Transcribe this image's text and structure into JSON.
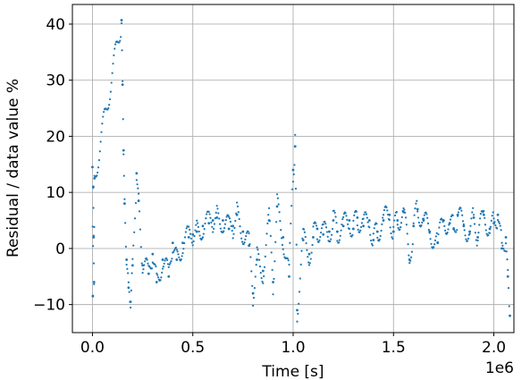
{
  "chart_data": {
    "type": "scatter",
    "title": "",
    "xlabel": "Time [s]",
    "ylabel": "Residual / data value  %",
    "x_offset_label": "1e6",
    "xlim": [
      -0.1,
      2.1
    ],
    "ylim": [
      -15,
      43.5
    ],
    "x_ticks": [
      0.0,
      0.5,
      1.0,
      1.5,
      2.0
    ],
    "x_tick_labels": [
      "0.0",
      "0.5",
      "1.0",
      "1.5",
      "2.0"
    ],
    "y_ticks": [
      -10,
      0,
      10,
      20,
      30,
      40
    ],
    "y_tick_labels": [
      "−10",
      "0",
      "10",
      "20",
      "30",
      "40"
    ],
    "grid": true,
    "legend": "none",
    "marker_color": "#1f77b4",
    "x_units_multiplier": 1000000,
    "series": [
      {
        "x": [
          0.0,
          0.002,
          0.004,
          0.006,
          0.008,
          0.01,
          0.145,
          0.15,
          0.155,
          0.16,
          0.17,
          0.18,
          0.19,
          0.2,
          0.22,
          0.23,
          0.25,
          0.28,
          0.3,
          0.32,
          0.35,
          0.38,
          0.4,
          0.42,
          0.45,
          0.48,
          0.5,
          0.52,
          0.55,
          0.58,
          0.6,
          0.62,
          0.65,
          0.68,
          0.7,
          0.72,
          0.75,
          0.78,
          0.8,
          0.82,
          0.85,
          0.88,
          0.9,
          0.92,
          0.95,
          0.98,
          1.0,
          1.01,
          1.02,
          1.05,
          1.08,
          1.1,
          1.12,
          1.15,
          1.18,
          1.2,
          1.22,
          1.25,
          1.28,
          1.3,
          1.32,
          1.35,
          1.38,
          1.4,
          1.42,
          1.45,
          1.48,
          1.5,
          1.52,
          1.55,
          1.58,
          1.6,
          1.62,
          1.65,
          1.68,
          1.72,
          1.75,
          1.78,
          1.8,
          1.82,
          1.85,
          1.88,
          1.9,
          1.92,
          1.95,
          1.98,
          2.0,
          2.02,
          2.04,
          2.06,
          2.07,
          2.08
        ],
        "y": [
          14.5,
          -8.5,
          11.0,
          2.0,
          -6.0,
          12.5,
          40.7,
          29.2,
          17.5,
          8.0,
          -2.0,
          -7.0,
          -9.5,
          -3.0,
          13.4,
          8.5,
          -3.0,
          -4.5,
          -1.0,
          -6.0,
          -2.0,
          -5.0,
          1.0,
          -2.0,
          1.0,
          2.0,
          2.5,
          3.0,
          4.0,
          4.5,
          5.0,
          5.5,
          5.0,
          3.5,
          4.0,
          6.0,
          3.0,
          0.5,
          -8.0,
          -2.0,
          -4.0,
          5.0,
          -6.0,
          7.5,
          2.0,
          -5.0,
          14.0,
          18.2,
          -11.0,
          1.5,
          -1.0,
          2.0,
          3.5,
          2.5,
          3.0,
          5.0,
          3.0,
          4.0,
          5.0,
          3.5,
          5.5,
          4.0,
          5.0,
          1.5,
          3.0,
          5.0,
          6.0,
          3.0,
          5.0,
          6.5,
          -2.0,
          4.0,
          7.0,
          5.0,
          3.0,
          1.0,
          5.0,
          4.5,
          3.5,
          6.0,
          4.0,
          3.0,
          5.5,
          2.0,
          6.0,
          3.5,
          4.5,
          6.0,
          0.0,
          2.0,
          -5.0,
          -12.0
        ]
      }
    ]
  }
}
